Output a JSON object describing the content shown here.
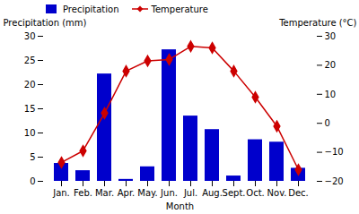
{
  "chart_data": {
    "type": "bar",
    "xlabel": "Month",
    "ylabel": "Precipitation (mm)",
    "y2label": "Temperature (°C)",
    "categories": [
      "Jan.",
      "Feb.",
      "Mar.",
      "Apr.",
      "May.",
      "Jun.",
      "Jul.",
      "Aug.",
      "Sept.",
      "Oct.",
      "Nov.",
      "Dec."
    ],
    "series": [
      {
        "name": "Precipitation",
        "type": "bar",
        "color": "#0000cc",
        "values": [
          3.7,
          2.2,
          22.2,
          0.4,
          3.0,
          27.2,
          13.5,
          10.7,
          1.1,
          8.6,
          8.1,
          2.7
        ]
      },
      {
        "name": "Temperature",
        "type": "line",
        "axis": "y2",
        "color": "#cc0000",
        "marker": "diamond",
        "values": [
          -13.5,
          -9.5,
          3.5,
          18.0,
          21.5,
          22.0,
          26.5,
          26.0,
          18.0,
          9.0,
          -1.0,
          -16.0
        ]
      }
    ],
    "ylim": [
      0,
      30
    ],
    "yticks": [
      0,
      5,
      10,
      15,
      20,
      25,
      30
    ],
    "y2lim": [
      -20,
      30
    ],
    "y2ticks": [
      -20,
      -10,
      0,
      10,
      20,
      30
    ],
    "grid": false,
    "legend": "upper left"
  }
}
